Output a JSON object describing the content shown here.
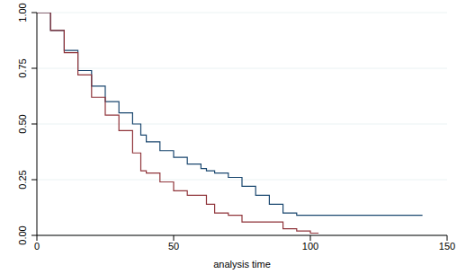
{
  "chart_data": {
    "type": "line",
    "x_label": "analysis time",
    "x": [
      0,
      5,
      10,
      15,
      20,
      25,
      30,
      35,
      38,
      40,
      45,
      50,
      55,
      60,
      62,
      65,
      70,
      75,
      80,
      85,
      90,
      95,
      100,
      103,
      141
    ],
    "series": [
      {
        "color": "#1a476f",
        "values": [
          1.0,
          0.92,
          0.83,
          0.74,
          0.67,
          0.6,
          0.55,
          0.5,
          0.45,
          0.42,
          0.38,
          0.35,
          0.32,
          0.3,
          0.29,
          0.28,
          0.26,
          0.22,
          0.18,
          0.14,
          0.1,
          0.09,
          0.09,
          0.09,
          0.09
        ]
      },
      {
        "color": "#90353b",
        "values": [
          1.0,
          0.92,
          0.82,
          0.72,
          0.62,
          0.54,
          0.47,
          0.37,
          0.29,
          0.28,
          0.24,
          0.2,
          0.18,
          0.18,
          0.14,
          0.1,
          0.09,
          0.06,
          0.06,
          0.06,
          0.03,
          0.02,
          0.01,
          0.01,
          null
        ]
      }
    ],
    "line_style": "step",
    "xlim": [
      0,
      150
    ],
    "xticks": [
      0,
      50,
      100,
      150
    ],
    "ylim": [
      0,
      1
    ],
    "yticks": [
      {
        "value": 0,
        "label": "0.00"
      },
      {
        "value": 0.25,
        "label": "0.25"
      },
      {
        "value": 0.5,
        "label": "0.50"
      },
      {
        "value": 0.75,
        "label": "0.75"
      },
      {
        "value": 1,
        "label": "1.00"
      }
    ],
    "grid": true
  }
}
